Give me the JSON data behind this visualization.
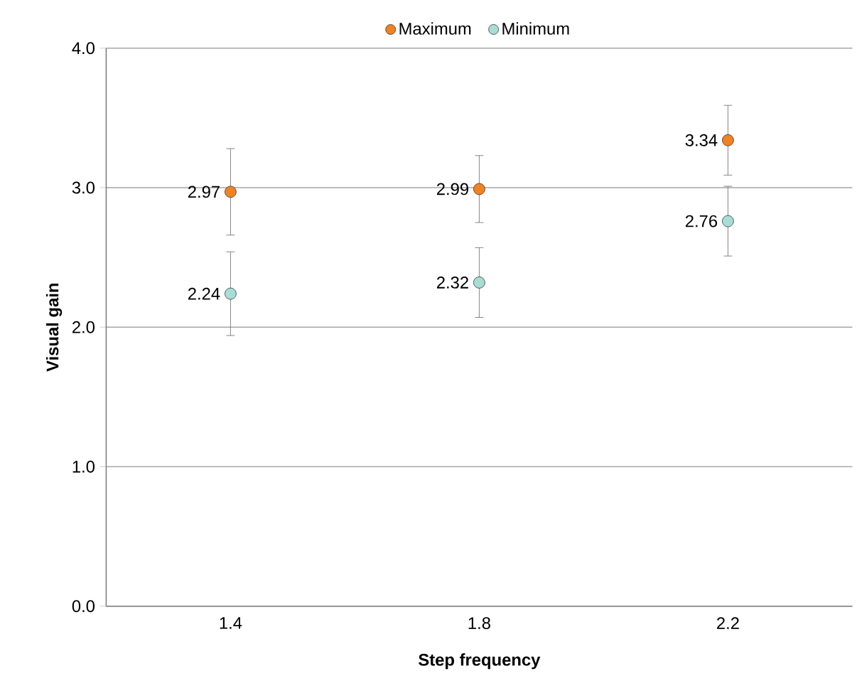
{
  "chart_data": {
    "type": "scatter",
    "xlabel": "Step frequency",
    "ylabel": "Visual gain",
    "categories": [
      "1.4",
      "1.8",
      "2.2"
    ],
    "series": [
      {
        "name": "Maximum",
        "color": "#f08224",
        "values": [
          2.97,
          2.99,
          3.34
        ],
        "errors": [
          0.31,
          0.24,
          0.25
        ]
      },
      {
        "name": "Minimum",
        "color": "#a8ddd5",
        "values": [
          2.24,
          2.32,
          2.76
        ],
        "errors": [
          0.3,
          0.25,
          0.25
        ]
      }
    ],
    "ylim": [
      0,
      4
    ],
    "yticks": [
      {
        "value": 0,
        "label": "0.0"
      },
      {
        "value": 1,
        "label": "1.0"
      },
      {
        "value": 2,
        "label": "2.0"
      },
      {
        "value": 3,
        "label": "3.0"
      },
      {
        "value": 4,
        "label": "4.0"
      }
    ],
    "grid": "y",
    "legend": "top",
    "marker": "circle",
    "data_labels": true
  }
}
